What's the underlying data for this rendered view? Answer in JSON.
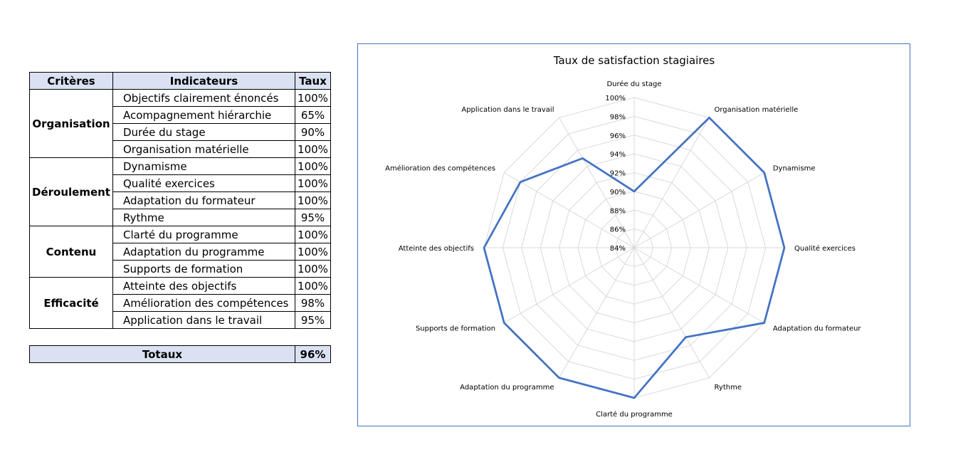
{
  "table": {
    "headers": [
      "Critères",
      "Indicateurs",
      "Taux"
    ],
    "groups": [
      {
        "name": "Organisation",
        "rows": [
          [
            "Objectifs clairement énoncés",
            "100%"
          ],
          [
            "Acompagnement hiérarchie",
            "65%"
          ],
          [
            "Durée du stage",
            "90%"
          ],
          [
            "Organisation matérielle",
            "100%"
          ]
        ]
      },
      {
        "name": "Déroulement",
        "rows": [
          [
            "Dynamisme",
            "100%"
          ],
          [
            "Qualité exercices",
            "100%"
          ],
          [
            "Adaptation du formateur",
            "100%"
          ],
          [
            "Rythme",
            "95%"
          ]
        ]
      },
      {
        "name": "Contenu",
        "rows": [
          [
            "Clarté du programme",
            "100%"
          ],
          [
            "Adaptation du programme",
            "100%"
          ],
          [
            "Supports de formation",
            "100%"
          ]
        ]
      },
      {
        "name": "Efficacité",
        "rows": [
          [
            "Atteinte des objectifs",
            "100%"
          ],
          [
            "Amélioration des compétences",
            "98%"
          ],
          [
            "Application dans le travail",
            "95%"
          ]
        ]
      }
    ],
    "total_label": "Totaux",
    "total_value": "96%"
  },
  "chart_data": {
    "type": "radar",
    "title": "Taux de satisfaction stagiaires",
    "categories": [
      "Durée du stage",
      "Organisation matérielle",
      "Dynamisme",
      "Qualité exercices",
      "Adaptation du formateur",
      "Rythme",
      "Clarté du programme",
      "Adaptation du programme",
      "Supports de formation",
      "Atteinte des objectifs",
      "Amélioration des compétences",
      "Application dans le travail"
    ],
    "values": [
      90,
      100,
      100,
      100,
      100,
      95,
      100,
      100,
      100,
      100,
      98,
      95
    ],
    "rlim": [
      84,
      100
    ],
    "ticks": [
      84,
      86,
      88,
      90,
      92,
      94,
      96,
      98,
      100
    ],
    "tick_labels": [
      "84%",
      "86%",
      "88%",
      "90%",
      "92%",
      "94%",
      "96%",
      "98%",
      "100%"
    ],
    "series_color": "#4472c4",
    "grid_color": "#d9d9d9"
  }
}
